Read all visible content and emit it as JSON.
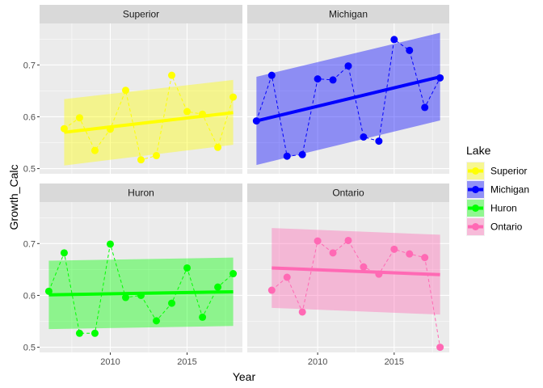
{
  "chart_data": {
    "type": "line",
    "xlabel": "Year",
    "ylabel": "Growth_Calc",
    "xlim": [
      2005.4,
      2018.6
    ],
    "ylim": [
      0.49,
      0.78
    ],
    "x_ticks": [
      2010,
      2015
    ],
    "y_ticks": [
      0.5,
      0.6,
      0.7
    ],
    "grid": true,
    "legend": {
      "title": "Lake",
      "position": "right"
    },
    "panels": [
      {
        "name": "Superior",
        "color": "#FFFF00",
        "x": [
          2007,
          2008,
          2009,
          2010,
          2011,
          2012,
          2013,
          2014,
          2015,
          2016,
          2017,
          2018
        ],
        "y": [
          0.577,
          0.598,
          0.535,
          0.576,
          0.651,
          0.517,
          0.525,
          0.68,
          0.61,
          0.605,
          0.541,
          0.638
        ],
        "fit": [
          0.57,
          0.608
        ],
        "band_lower": [
          0.506,
          0.546
        ],
        "band_upper": [
          0.634,
          0.671
        ]
      },
      {
        "name": "Michigan",
        "color": "#0000FF",
        "x": [
          2006,
          2007,
          2008,
          2009,
          2010,
          2011,
          2012,
          2013,
          2014,
          2015,
          2016,
          2017,
          2018
        ],
        "y": [
          0.592,
          0.68,
          0.524,
          0.527,
          0.673,
          0.671,
          0.698,
          0.561,
          0.553,
          0.749,
          0.728,
          0.618,
          0.675
        ],
        "fit": [
          0.592,
          0.677
        ],
        "band_lower": [
          0.507,
          0.593
        ],
        "band_upper": [
          0.677,
          0.762
        ]
      },
      {
        "name": "Huron",
        "color": "#00FF00",
        "x": [
          2006,
          2007,
          2008,
          2009,
          2010,
          2011,
          2012,
          2013,
          2014,
          2015,
          2016,
          2017,
          2018
        ],
        "y": [
          0.608,
          0.682,
          0.527,
          0.527,
          0.699,
          0.596,
          0.6,
          0.551,
          0.585,
          0.653,
          0.558,
          0.616,
          0.642
        ],
        "fit": [
          0.601,
          0.607
        ],
        "band_lower": [
          0.535,
          0.541
        ],
        "band_upper": [
          0.667,
          0.673
        ]
      },
      {
        "name": "Ontario",
        "color": "#FF69B4",
        "x": [
          2007,
          2008,
          2009,
          2010,
          2011,
          2012,
          2013,
          2014,
          2015,
          2016,
          2017,
          2018
        ],
        "y": [
          0.61,
          0.635,
          0.568,
          0.705,
          0.682,
          0.706,
          0.655,
          0.641,
          0.689,
          0.68,
          0.673,
          0.5
        ],
        "fit": [
          0.653,
          0.64
        ],
        "band_lower": [
          0.576,
          0.563
        ],
        "band_upper": [
          0.73,
          0.717
        ]
      }
    ]
  }
}
